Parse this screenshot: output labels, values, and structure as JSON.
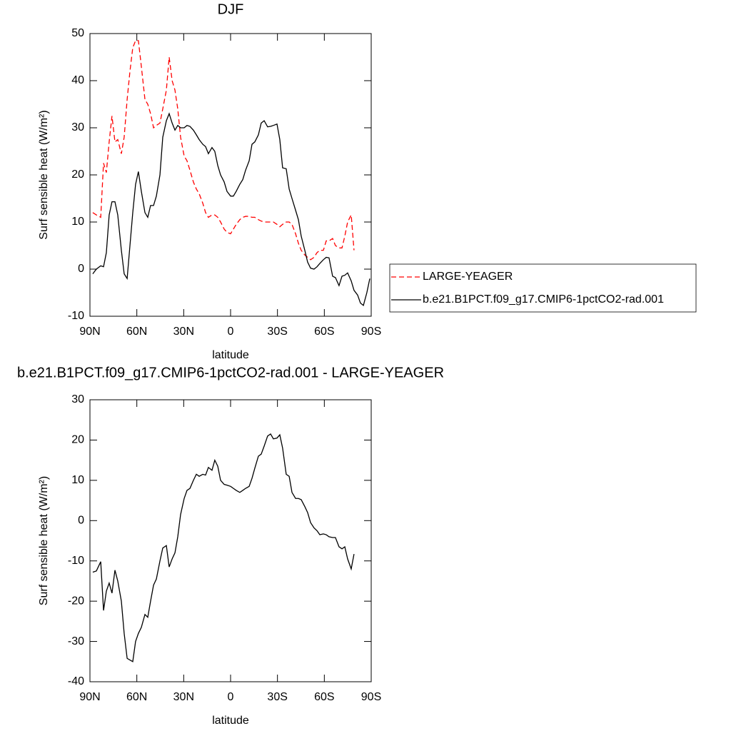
{
  "chart_data": [
    {
      "type": "line",
      "title": "DJF",
      "xlabel": "latitude",
      "ylabel": "Surf sensible heat (W/m²)",
      "xlim": [
        90,
        -90
      ],
      "xticks": [
        {
          "value": 90,
          "label": "90N"
        },
        {
          "value": 60,
          "label": "60N"
        },
        {
          "value": 30,
          "label": "30N"
        },
        0,
        {
          "value": -30,
          "label": "30S"
        },
        {
          "value": -60,
          "label": "60S"
        },
        {
          "value": -90,
          "label": "90S"
        }
      ],
      "ylim": [
        -10,
        50
      ],
      "yticks": [
        -10,
        0,
        10,
        20,
        30,
        40,
        50
      ],
      "legend": "outside-right",
      "x": [
        88.2,
        85.9,
        83.1,
        81.3,
        79.5,
        77.7,
        75.9,
        74.0,
        72.2,
        69.9,
        68.1,
        66.2,
        64.4,
        62.6,
        60.8,
        59.0,
        57.1,
        54.8,
        53.0,
        51.2,
        49.3,
        47.5,
        45.2,
        43.4,
        41.1,
        39.3,
        37.4,
        35.6,
        33.8,
        32.0,
        29.7,
        27.9,
        26.0,
        23.8,
        21.9,
        20.1,
        17.8,
        16.0,
        14.2,
        11.9,
        10.1,
        8.2,
        6.4,
        4.1,
        2.3,
        0,
        -1.8,
        -3.6,
        -5.9,
        -7.8,
        -9.6,
        -11.9,
        -13.7,
        -15.5,
        -17.8,
        -19.6,
        -21.5,
        -23.7,
        -25.6,
        -27.4,
        -29.7,
        -31.5,
        -33.3,
        -35.6,
        -37.5,
        -39.3,
        -41.6,
        -43.4,
        -45.2,
        -47.5,
        -49.3,
        -51.2,
        -53.4,
        -55.3,
        -57.1,
        -59.4,
        -61.2,
        -63.0,
        -65.3,
        -67.1,
        -69.4,
        -71.3,
        -73.1,
        -74.9,
        -77.2,
        -79.0,
        -81.3,
        -83.1,
        -85.0,
        -87.2,
        -89.1
      ],
      "series": [
        {
          "name": "LARGE-YEAGER",
          "color": "#ff0000",
          "line_style": "dashed",
          "values": [
            12,
            11.5,
            11,
            22.5,
            20.5,
            27,
            32.5,
            27,
            27.5,
            24.5,
            28,
            36,
            42,
            47,
            48.5,
            48.5,
            43,
            36,
            35,
            33,
            30,
            30.5,
            31,
            34,
            38,
            45,
            40,
            38,
            34,
            28,
            24,
            23,
            21,
            18.5,
            17,
            16,
            14,
            12,
            11,
            11.5,
            11.5,
            11,
            10,
            8.5,
            7.8,
            7.5,
            8.5,
            9.5,
            10.5,
            11,
            11.2,
            11.2,
            11,
            11,
            10.5,
            10.2,
            10,
            10,
            10,
            10,
            9.5,
            9,
            9.5,
            10,
            10,
            9.5,
            7.5,
            5.5,
            4,
            3,
            2.5,
            2,
            2.5,
            3.5,
            4,
            4,
            6,
            6,
            6.5,
            5,
            4.5,
            4.5,
            7,
            10,
            11.5,
            4,
            null,
            null,
            null,
            null,
            null
          ]
        },
        {
          "name": "b.e21.B1PCT.f09_g17.CMIP6-1pctCO2-rad.001",
          "color": "#000000",
          "line_style": "solid",
          "values": [
            -1,
            0,
            0.7,
            0.5,
            3.5,
            11.5,
            14.3,
            14.3,
            11.5,
            4,
            -1,
            -2,
            5,
            12,
            18,
            20.7,
            16.5,
            12,
            11,
            13.5,
            13.5,
            15.5,
            20,
            28,
            31.5,
            33,
            31,
            29.5,
            30.5,
            30,
            30,
            30.5,
            30.3,
            29.5,
            28.5,
            27.5,
            26.5,
            26,
            24.5,
            25.8,
            25,
            22,
            20,
            18.5,
            16.5,
            15.5,
            15.5,
            16.5,
            18,
            19,
            21,
            23,
            26.5,
            27,
            28.5,
            31,
            31.5,
            30.2,
            30.3,
            30.5,
            30.8,
            27.5,
            21.5,
            21.3,
            17,
            15,
            12.5,
            10.5,
            7,
            4,
            1.5,
            0.2,
            0,
            0.5,
            1.2,
            2,
            2.5,
            2.4,
            -1.5,
            -1.8,
            -3.5,
            -1.5,
            -1.3,
            -0.8,
            -2.5,
            -4.5,
            -5.5,
            -7.2,
            -7.7,
            -5,
            -2
          ]
        }
      ]
    },
    {
      "type": "line",
      "title": "b.e21.B1PCT.f09_g17.CMIP6-1pctCO2-rad.001 - LARGE-YEAGER",
      "xlabel": "latitude",
      "ylabel": "Surf sensible heat (W/m²)",
      "xlim": [
        90,
        -90
      ],
      "xticks": [
        {
          "value": 90,
          "label": "90N"
        },
        {
          "value": 60,
          "label": "60N"
        },
        {
          "value": 30,
          "label": "30N"
        },
        0,
        {
          "value": -30,
          "label": "30S"
        },
        {
          "value": -60,
          "label": "60S"
        },
        {
          "value": -90,
          "label": "90S"
        }
      ],
      "ylim": [
        -40,
        30
      ],
      "yticks": [
        -40,
        -30,
        -20,
        -10,
        0,
        10,
        20,
        30
      ],
      "x": [
        88.2,
        85.9,
        83.1,
        81.3,
        79.5,
        77.7,
        75.9,
        74.0,
        72.2,
        69.9,
        68.1,
        66.2,
        64.4,
        62.6,
        60.8,
        59.0,
        57.1,
        54.8,
        53.0,
        51.2,
        49.3,
        47.5,
        45.2,
        43.4,
        41.1,
        39.3,
        37.4,
        35.6,
        33.8,
        32.0,
        29.7,
        27.9,
        26.0,
        23.8,
        21.9,
        20.1,
        17.8,
        16.0,
        14.2,
        11.9,
        10.1,
        8.2,
        6.4,
        4.1,
        2.3,
        0,
        -1.8,
        -3.6,
        -5.9,
        -7.8,
        -9.6,
        -11.9,
        -13.7,
        -15.5,
        -17.8,
        -19.6,
        -21.5,
        -23.7,
        -25.6,
        -27.4,
        -29.7,
        -31.5,
        -33.3,
        -35.6,
        -37.5,
        -39.3,
        -41.6,
        -43.4,
        -45.2,
        -47.5,
        -49.3,
        -51.2,
        -53.4,
        -55.3,
        -57.1,
        -59.4,
        -61.2,
        -63.0,
        -65.3,
        -67.1,
        -69.4,
        -71.3,
        -73.1,
        -74.9,
        -77.2,
        -79.0
      ],
      "series": [
        {
          "color": "#000000",
          "line_style": "solid",
          "values": [
            -12.8,
            -12.5,
            -10.2,
            -22.3,
            -17.5,
            -15.5,
            -18,
            -12.3,
            -15,
            -20,
            -28,
            -34.2,
            -34.6,
            -35,
            -30,
            -28,
            -26.5,
            -23.3,
            -24,
            -20,
            -16,
            -14.5,
            -10,
            -6.8,
            -6.2,
            -11.5,
            -9.5,
            -8,
            -4,
            1.5,
            5.5,
            7.5,
            8,
            10,
            11.5,
            11,
            11.5,
            11.3,
            13.2,
            12.5,
            15,
            13.5,
            10,
            9,
            8.8,
            8.5,
            8,
            7.5,
            7,
            7.5,
            8,
            8.5,
            10.5,
            13,
            16,
            16.5,
            18.5,
            21,
            21.5,
            20.3,
            20.5,
            21.3,
            18,
            11.5,
            11,
            7,
            5.5,
            5.5,
            5.2,
            3.5,
            2,
            -0.5,
            -1.8,
            -2.5,
            -3.5,
            -3.3,
            -3.5,
            -4,
            -4.2,
            -4.2,
            -6.5,
            -7,
            -6.5,
            -9.5,
            -12,
            -8.3
          ]
        }
      ]
    }
  ]
}
